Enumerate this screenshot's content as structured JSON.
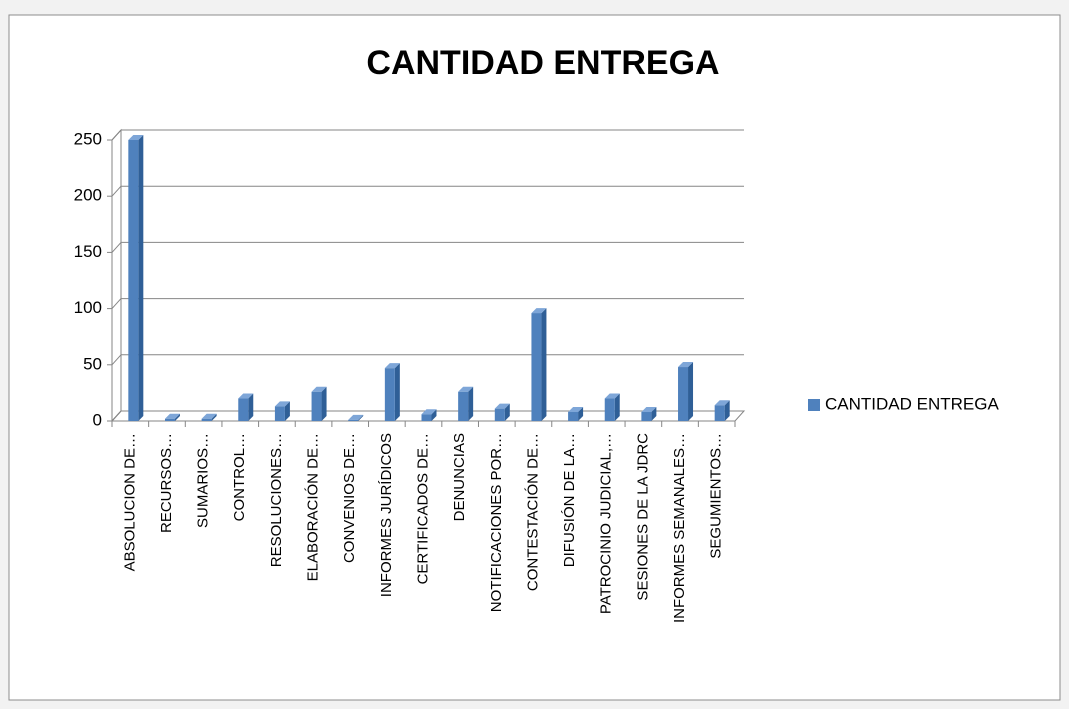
{
  "chart_data": {
    "type": "bar3d",
    "title": "CANTIDAD ENTREGA",
    "categories": [
      "ABSOLUCION DE…",
      "RECURSOS…",
      "SUMARIOS…",
      "CONTROL…",
      "RESOLUCIONES…",
      "ELABORACIÓN DE…",
      "CONVENIOS DE…",
      "INFORMES JURÍDICOS",
      "CERTIFICADOS DE…",
      "DENUNCIAS",
      "NOTIFICACIONES POR…",
      "CONTESTACIÓN DE…",
      "DIFUSIÓN DE LA…",
      "PATROCINIO JUDICIAL,…",
      "SESIONES DE LA JDRC",
      "INFORMES SEMANALES…",
      "SEGUMIENTOS…"
    ],
    "series": [
      {
        "name": "CANTIDAD ENTREGA",
        "color": "#4f81bd",
        "values": [
          250,
          2,
          2,
          20,
          13,
          26,
          1,
          47,
          6,
          26,
          11,
          96,
          8,
          20,
          8,
          48,
          14
        ]
      }
    ],
    "ylim": [
      0,
      250
    ],
    "yticks": [
      0,
      50,
      100,
      150,
      200,
      250
    ],
    "grid": true,
    "legend": "right"
  }
}
